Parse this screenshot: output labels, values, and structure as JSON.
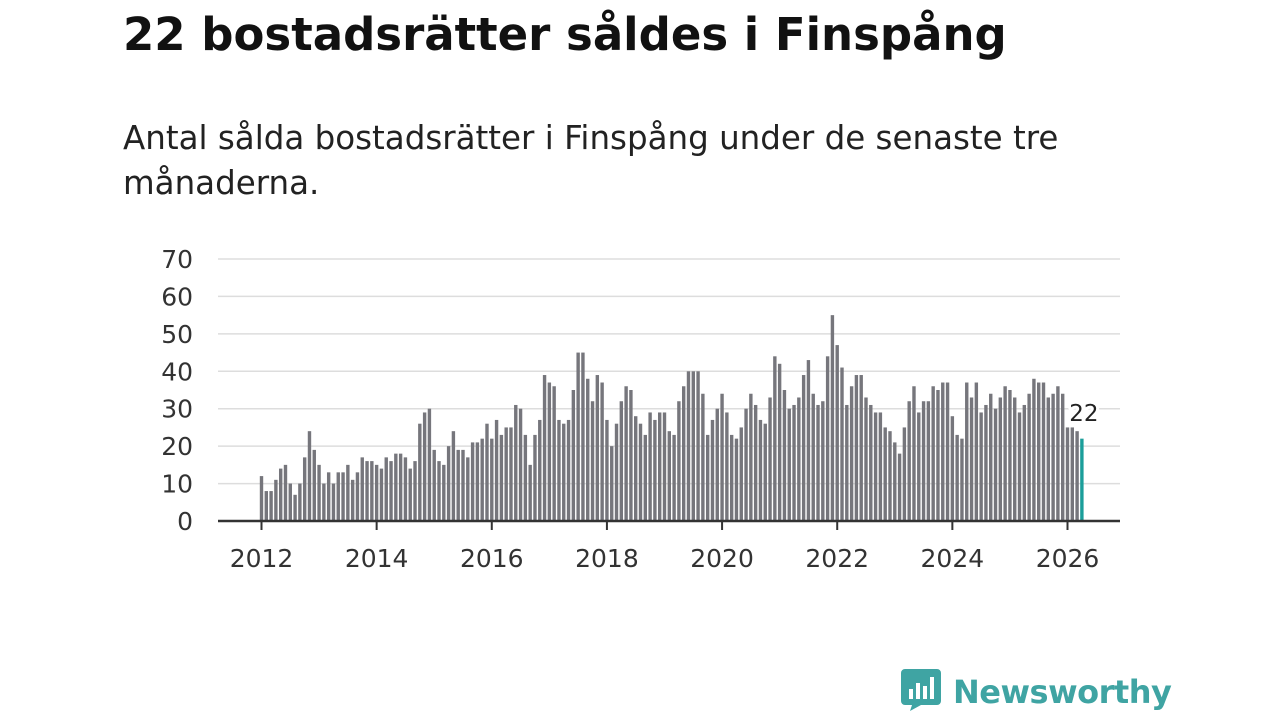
{
  "title": "22 bostadsrätter såldes i Finspång",
  "subtitle": "Antal sålda bostadsrätter i Finspång under de senaste tre månaderna.",
  "brand": {
    "name": "Newsworthy",
    "color": "#3fa4a3",
    "icon": "newsworthy-logo-icon"
  },
  "colors": {
    "bar": "#76767c",
    "highlight": "#1b9e9a",
    "grid": "#dddddd",
    "axis": "#333333"
  },
  "chart_data": {
    "type": "bar",
    "title": "22 bostadsrätter såldes i Finspång",
    "xlabel": "",
    "ylabel": "",
    "ylim": [
      0,
      70
    ],
    "grid": true,
    "start": "2012-01",
    "end": "2026-02",
    "y_ticks": [
      "0",
      "10",
      "20",
      "30",
      "40",
      "50",
      "60",
      "70"
    ],
    "x_ticks": [
      "2012",
      "2014",
      "2016",
      "2018",
      "2020",
      "2022",
      "2024",
      "2026"
    ],
    "values": [
      12,
      8,
      8,
      11,
      14,
      15,
      10,
      7,
      10,
      17,
      24,
      19,
      15,
      10,
      13,
      10,
      13,
      13,
      15,
      11,
      13,
      17,
      16,
      16,
      15,
      14,
      17,
      16,
      18,
      18,
      17,
      14,
      16,
      26,
      29,
      30,
      19,
      16,
      15,
      20,
      24,
      19,
      19,
      17,
      21,
      21,
      22,
      26,
      22,
      27,
      23,
      25,
      25,
      31,
      30,
      23,
      15,
      23,
      27,
      39,
      37,
      36,
      27,
      26,
      27,
      35,
      45,
      45,
      38,
      32,
      39,
      37,
      27,
      20,
      26,
      32,
      36,
      35,
      28,
      26,
      23,
      29,
      27,
      29,
      29,
      24,
      23,
      32,
      36,
      40,
      40,
      40,
      34,
      23,
      27,
      30,
      34,
      29,
      23,
      22,
      25,
      30,
      34,
      31,
      27,
      26,
      33,
      44,
      42,
      35,
      30,
      31,
      33,
      39,
      43,
      34,
      31,
      32,
      44,
      55,
      47,
      41,
      31,
      36,
      39,
      39,
      33,
      31,
      29,
      29,
      25,
      24,
      21,
      18,
      25,
      32,
      36,
      29,
      32,
      32,
      36,
      35,
      37,
      37,
      28,
      23,
      22,
      37,
      33,
      37,
      29,
      31,
      34,
      30,
      33,
      36,
      35,
      33,
      29,
      31,
      34,
      38,
      37,
      37,
      33,
      34,
      36,
      34,
      25,
      25,
      24,
      22
    ],
    "highlight_last": 1,
    "annotation": "22"
  }
}
